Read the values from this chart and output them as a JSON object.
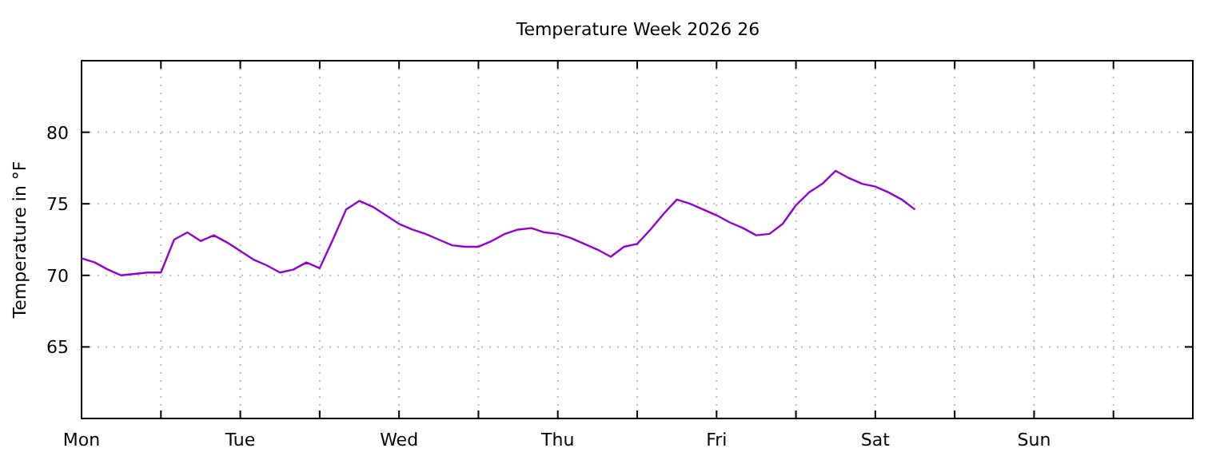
{
  "chart_data": {
    "type": "line",
    "title": "Temperature Week 2026 26",
    "ylabel": "Temperature in °F",
    "categories": [
      "Mon",
      null,
      null,
      null,
      null,
      null,
      null,
      null,
      null,
      null,
      null,
      null,
      "Tue",
      null,
      null,
      null,
      null,
      null,
      null,
      null,
      null,
      null,
      null,
      null,
      "Wed",
      null,
      null,
      null,
      null,
      null,
      null,
      null,
      null,
      null,
      null,
      null,
      "Thu",
      null,
      null,
      null,
      null,
      null,
      null,
      null,
      null,
      null,
      null,
      null,
      "Fri",
      null,
      null,
      null,
      null,
      null,
      null,
      null,
      null,
      null,
      null,
      null,
      "Sat",
      null,
      null,
      null,
      null,
      null,
      null,
      null,
      null,
      null,
      null,
      null,
      "Sun",
      null,
      null,
      null,
      null,
      null,
      null,
      null,
      null,
      null,
      null,
      null,
      null
    ],
    "ylim": [
      60,
      85
    ],
    "yticks": [
      65,
      70,
      75,
      80
    ],
    "grid": true,
    "series": [
      {
        "color": "#9400d3",
        "values": [
          71.2,
          70.9,
          70.4,
          70.0,
          70.1,
          70.2,
          70.2,
          72.5,
          73.0,
          72.4,
          72.8,
          72.3,
          71.7,
          71.1,
          70.7,
          70.2,
          70.4,
          70.9,
          70.5,
          72.5,
          74.6,
          75.2,
          74.8,
          74.2,
          73.6,
          73.2,
          72.9,
          72.5,
          72.1,
          72.0,
          72.0,
          72.4,
          72.9,
          73.2,
          73.3,
          73.0,
          72.9,
          72.6,
          72.2,
          71.8,
          71.3,
          72.0,
          72.2,
          73.2,
          74.3,
          75.3,
          75.0,
          74.6,
          74.2,
          73.7,
          73.3,
          72.8,
          72.9,
          73.6,
          74.9,
          75.8,
          76.4,
          77.3,
          76.8,
          76.4,
          76.2,
          75.8,
          75.3,
          74.6,
          null,
          null,
          null,
          null,
          null,
          null,
          null,
          null,
          null,
          null,
          null,
          null,
          null,
          null,
          null,
          null,
          null,
          null,
          null,
          null,
          null
        ]
      }
    ]
  }
}
